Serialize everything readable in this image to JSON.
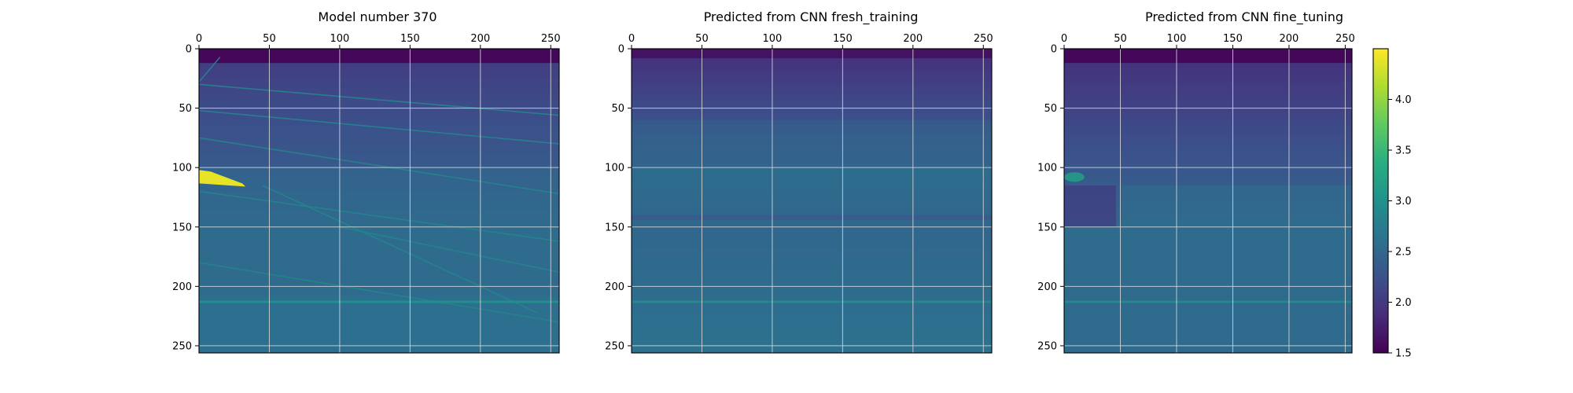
{
  "chart_data": [
    {
      "type": "heatmap",
      "title": "Model number 370",
      "xticks": [
        0,
        50,
        100,
        150,
        200,
        250
      ],
      "yticks": [
        0,
        50,
        100,
        150,
        200,
        250
      ],
      "xlim": [
        0,
        256
      ],
      "ylim": [
        256,
        0
      ],
      "grid": true,
      "x_axis_position": "top",
      "values_description": "velocity model with layered structure, thin dipping reflectors and a high-velocity lens near depth 100-115 at the left edge",
      "features": {
        "top_layer": {
          "depth_end": 12,
          "value": 1.55
        },
        "lens": {
          "x": [
            0,
            33
          ],
          "y": [
            102,
            116
          ],
          "value": 4.4
        },
        "horizontal_reflector": {
          "y": 213,
          "value": 3.0
        },
        "dipping_reflectors": [
          {
            "from": [
              0,
              30
            ],
            "to": [
              256,
              56
            ]
          },
          {
            "from": [
              0,
              52
            ],
            "to": [
              256,
              80
            ]
          },
          {
            "from": [
              0,
              75
            ],
            "to": [
              256,
              122
            ]
          },
          {
            "from": [
              0,
              120
            ],
            "to": [
              256,
              162
            ]
          },
          {
            "from": [
              0,
              180
            ],
            "to": [
              256,
              230
            ]
          },
          {
            "from": [
              100,
              150
            ],
            "to": [
              256,
              188
            ]
          },
          {
            "from": [
              45,
              115
            ],
            "to": [
              240,
              222
            ]
          },
          {
            "from": [
              0,
              28
            ],
            "to": [
              15,
              7
            ]
          }
        ]
      }
    },
    {
      "type": "heatmap",
      "title": "Predicted from CNN fresh_training",
      "xticks": [
        0,
        50,
        100,
        150,
        200,
        250
      ],
      "yticks": [
        0,
        50,
        100,
        150,
        200,
        250
      ],
      "xlim": [
        0,
        256
      ],
      "ylim": [
        256,
        0
      ],
      "grid": true,
      "x_axis_position": "top",
      "values_description": "smooth predicted velocity, low values near surface, brighter band around depth 100-140, horizontal stripe near 213",
      "features": {
        "top_layer": {
          "depth_end": 10,
          "value": 1.65
        },
        "horizontal_reflector": {
          "y": 213,
          "value": 2.9
        }
      }
    },
    {
      "type": "heatmap",
      "title": "Predicted from CNN fine_tuning",
      "xticks": [
        0,
        50,
        100,
        150,
        200,
        250
      ],
      "yticks": [
        0,
        50,
        100,
        150,
        200,
        250
      ],
      "xlim": [
        0,
        256
      ],
      "ylim": [
        256,
        0
      ],
      "grid": true,
      "x_axis_position": "top",
      "values_description": "predicted velocity with faint high-value blob near depth 105-112 left edge and horizontal stripe near 213",
      "features": {
        "top_layer": {
          "depth_end": 12,
          "value": 1.55
        },
        "lens": {
          "x": [
            0,
            18
          ],
          "y": [
            104,
            112
          ],
          "value": 3.2
        },
        "horizontal_reflector": {
          "y": 213,
          "value": 2.9
        }
      }
    }
  ],
  "colorbar": {
    "colormap": "viridis",
    "range": [
      1.5,
      4.5
    ],
    "ticks": [
      "1.5",
      "2.0",
      "2.5",
      "3.0",
      "3.5",
      "4.0"
    ],
    "tick_values": [
      1.5,
      2.0,
      2.5,
      3.0,
      3.5,
      4.0
    ]
  }
}
